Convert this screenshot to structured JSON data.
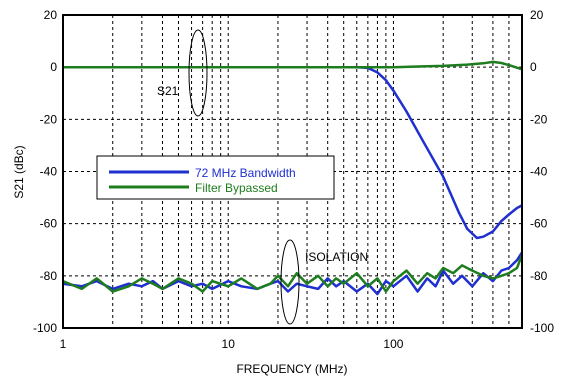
{
  "chart_data": {
    "type": "line",
    "xlabel": "FREQUENCY (MHz)",
    "ylabel": "S21 (dBc)",
    "x_scale": "log",
    "xlim": [
      1,
      600
    ],
    "ylim": [
      -100,
      20
    ],
    "x_ticks": [
      1,
      10,
      100
    ],
    "x_tick_labels": [
      "1",
      "10",
      "100"
    ],
    "y_ticks": [
      20,
      0,
      -20,
      -40,
      -60,
      -80,
      -100
    ],
    "y_tick_labels": [
      "20",
      "0",
      "-20",
      "-40",
      "-60",
      "-80",
      "-100"
    ],
    "grid": true,
    "legend_placement": "center-left",
    "colors": {
      "blue": "#1f2fd0",
      "green": "#1e7d1e"
    },
    "annotations": [
      {
        "text": "S21",
        "x": 6.5,
        "y": 0
      },
      {
        "text": "ISOLATION",
        "x": 21,
        "y": -80
      }
    ],
    "series": [
      {
        "name": "72 MHz Bandwidth",
        "color": "#1f2fd0",
        "points": [
          [
            1,
            0
          ],
          [
            10,
            0
          ],
          [
            50,
            0
          ],
          [
            60,
            0
          ],
          [
            70,
            -0.3
          ],
          [
            80,
            -2
          ],
          [
            90,
            -5
          ],
          [
            100,
            -9
          ],
          [
            120,
            -17
          ],
          [
            150,
            -28
          ],
          [
            200,
            -42
          ],
          [
            250,
            -56
          ],
          [
            280,
            -62
          ],
          [
            320,
            -65.5
          ],
          [
            350,
            -65
          ],
          [
            400,
            -63
          ],
          [
            450,
            -59
          ],
          [
            500,
            -56.5
          ],
          [
            560,
            -54
          ],
          [
            600,
            -53
          ]
        ]
      },
      {
        "name": "Filter Bypassed",
        "color": "#1e7d1e",
        "points": [
          [
            1,
            0
          ],
          [
            10,
            0
          ],
          [
            50,
            0
          ],
          [
            100,
            0
          ],
          [
            150,
            0.3
          ],
          [
            200,
            0.5
          ],
          [
            280,
            1
          ],
          [
            350,
            1.5
          ],
          [
            400,
            2
          ],
          [
            450,
            1.6
          ],
          [
            500,
            0.8
          ],
          [
            560,
            -0.2
          ],
          [
            600,
            -0.8
          ]
        ]
      },
      {
        "name": "72 MHz Bandwidth isolation",
        "color": "#1f2fd0",
        "points": [
          [
            1,
            -83
          ],
          [
            1.3,
            -84
          ],
          [
            1.6,
            -82
          ],
          [
            2,
            -85
          ],
          [
            2.5,
            -83
          ],
          [
            3,
            -84
          ],
          [
            3.5,
            -82
          ],
          [
            4,
            -85
          ],
          [
            5,
            -82
          ],
          [
            6,
            -84
          ],
          [
            7,
            -83
          ],
          [
            8,
            -85
          ],
          [
            10,
            -82
          ],
          [
            12,
            -84
          ],
          [
            15,
            -85
          ],
          [
            18,
            -83
          ],
          [
            20,
            -82
          ],
          [
            23,
            -86
          ],
          [
            26,
            -83
          ],
          [
            30,
            -84
          ],
          [
            35,
            -85
          ],
          [
            40,
            -81
          ],
          [
            45,
            -84
          ],
          [
            50,
            -82
          ],
          [
            60,
            -86
          ],
          [
            70,
            -83
          ],
          [
            80,
            -87
          ],
          [
            90,
            -82
          ],
          [
            100,
            -84
          ],
          [
            120,
            -80
          ],
          [
            140,
            -86
          ],
          [
            160,
            -81
          ],
          [
            180,
            -84
          ],
          [
            200,
            -78
          ],
          [
            230,
            -83
          ],
          [
            260,
            -80
          ],
          [
            300,
            -84
          ],
          [
            350,
            -79
          ],
          [
            400,
            -82
          ],
          [
            450,
            -78
          ],
          [
            500,
            -77
          ],
          [
            560,
            -74
          ],
          [
            600,
            -71
          ]
        ]
      },
      {
        "name": "Filter Bypassed isolation",
        "color": "#1e7d1e",
        "points": [
          [
            1,
            -82
          ],
          [
            1.3,
            -85
          ],
          [
            1.6,
            -81
          ],
          [
            2,
            -86
          ],
          [
            2.5,
            -84
          ],
          [
            3,
            -81
          ],
          [
            3.5,
            -83
          ],
          [
            4,
            -85
          ],
          [
            5,
            -81
          ],
          [
            6,
            -83
          ],
          [
            7,
            -86
          ],
          [
            8,
            -82
          ],
          [
            10,
            -84
          ],
          [
            12,
            -81
          ],
          [
            15,
            -85
          ],
          [
            18,
            -83
          ],
          [
            20,
            -80
          ],
          [
            23,
            -84
          ],
          [
            26,
            -79
          ],
          [
            30,
            -83
          ],
          [
            35,
            -80
          ],
          [
            40,
            -84
          ],
          [
            45,
            -81
          ],
          [
            50,
            -83
          ],
          [
            60,
            -79
          ],
          [
            70,
            -84
          ],
          [
            80,
            -81
          ],
          [
            90,
            -86
          ],
          [
            100,
            -82
          ],
          [
            120,
            -78
          ],
          [
            140,
            -83
          ],
          [
            160,
            -79
          ],
          [
            180,
            -81
          ],
          [
            200,
            -77
          ],
          [
            230,
            -79
          ],
          [
            260,
            -76
          ],
          [
            300,
            -78
          ],
          [
            350,
            -80
          ],
          [
            400,
            -81
          ],
          [
            450,
            -80
          ],
          [
            500,
            -79
          ],
          [
            560,
            -77
          ],
          [
            600,
            -72
          ]
        ]
      }
    ]
  }
}
